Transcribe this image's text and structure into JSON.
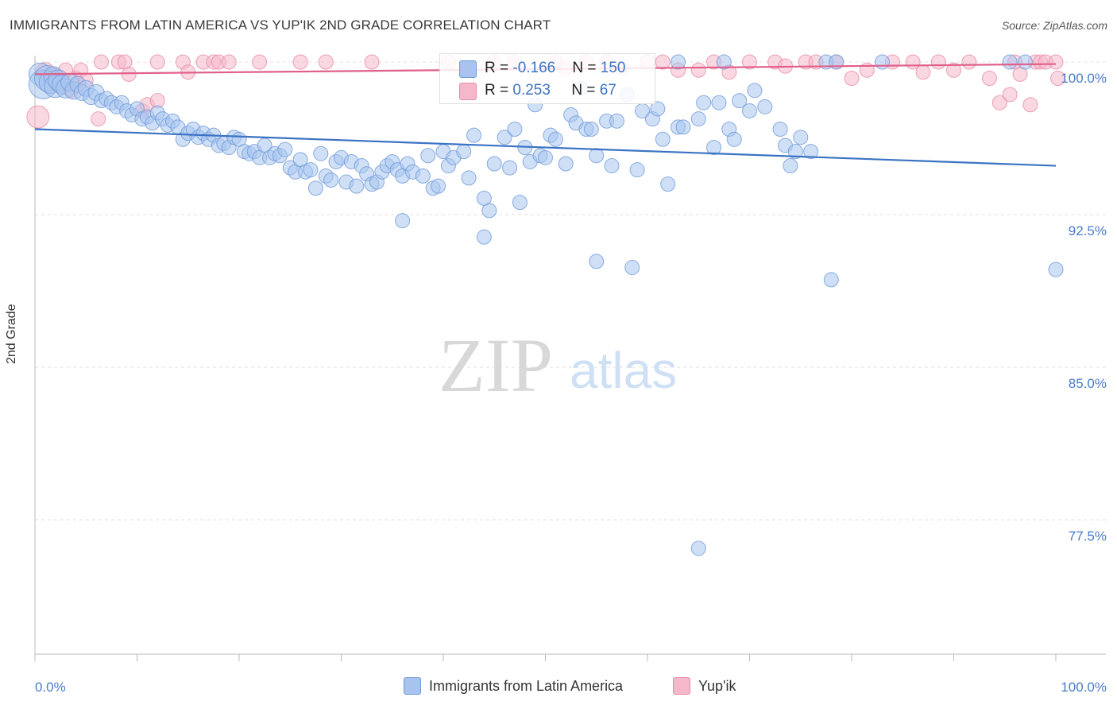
{
  "title": "IMMIGRANTS FROM LATIN AMERICA VS YUP'IK 2ND GRADE CORRELATION CHART",
  "source": "Source: ZipAtlas.com",
  "watermark": {
    "zip": "ZIP",
    "atlas": "atlas"
  },
  "colors": {
    "blue": "#3b73c4",
    "blue_fill": "#a8c4ee",
    "pink": "#e0608a",
    "pink_fill": "#f5b8cb",
    "grid": "#e2e2e2",
    "tick_text": "#4a7cc9"
  },
  "legend_top": {
    "rows": [
      {
        "r_label": "R = ",
        "r_value": "-0.166",
        "n_label": "N = ",
        "n_value": "150"
      },
      {
        "r_label": "R = ",
        "r_value": "0.253",
        "n_label": "N = ",
        "n_value": "67"
      }
    ]
  },
  "legend_bottom": [
    {
      "label": "Immigrants from Latin America"
    },
    {
      "label": "Yup'ik"
    }
  ],
  "chart_data": {
    "type": "scatter",
    "title": "IMMIGRANTS FROM LATIN AMERICA VS YUP'IK 2ND GRADE CORRELATION CHART",
    "xlabel": "",
    "ylabel": "2nd Grade",
    "xlim": [
      0,
      100
    ],
    "ylim": [
      70,
      101.5
    ],
    "x_tick_labels": [
      "0.0%",
      "100.0%"
    ],
    "y_ticks": [
      {
        "value": 100,
        "label": "100.0%"
      },
      {
        "value": 92.5,
        "label": "92.5%"
      },
      {
        "value": 85,
        "label": "85.0%"
      },
      {
        "value": 77.5,
        "label": "77.5%"
      }
    ],
    "series": [
      {
        "name": "Immigrants from Latin America",
        "trend": {
          "x": [
            0,
            100
          ],
          "y": [
            96.7,
            94.9
          ]
        },
        "points": [
          [
            0.5,
            99.4,
            14
          ],
          [
            0.8,
            98.9,
            18
          ],
          [
            1.2,
            99.2,
            16
          ],
          [
            1.5,
            99.0,
            14
          ],
          [
            1.8,
            99.3,
            12
          ],
          [
            2.0,
            98.8,
            14
          ],
          [
            2.3,
            99.1,
            13
          ],
          [
            2.6,
            98.9,
            12
          ],
          [
            3.0,
            98.7,
            12
          ],
          [
            3.4,
            99.0,
            11
          ],
          [
            3.8,
            98.6,
            11
          ],
          [
            4.2,
            98.9,
            10
          ],
          [
            4.6,
            98.5,
            10
          ],
          [
            5.0,
            98.7,
            10
          ],
          [
            5.5,
            98.3,
            10
          ],
          [
            6.0,
            98.5,
            10
          ],
          [
            6.5,
            98.1,
            9
          ],
          [
            7.0,
            98.2,
            9
          ],
          [
            7.5,
            98.0,
            9
          ],
          [
            8.0,
            97.8,
            9
          ],
          [
            8.5,
            98.0,
            9
          ],
          [
            9.0,
            97.6,
            9
          ],
          [
            9.5,
            97.4,
            9
          ],
          [
            10.0,
            97.7,
            9
          ],
          [
            10.5,
            97.2,
            9
          ],
          [
            11.0,
            97.3,
            9
          ],
          [
            11.5,
            97.0,
            9
          ],
          [
            12.0,
            97.5,
            9
          ],
          [
            12.5,
            97.2,
            9
          ],
          [
            13.0,
            96.9,
            9
          ],
          [
            13.5,
            97.1,
            9
          ],
          [
            14.0,
            96.8,
            9
          ],
          [
            14.5,
            96.2,
            9
          ],
          [
            15.0,
            96.5,
            9
          ],
          [
            15.5,
            96.7,
            9
          ],
          [
            16.0,
            96.3,
            9
          ],
          [
            16.5,
            96.5,
            9
          ],
          [
            17.0,
            96.2,
            9
          ],
          [
            17.5,
            96.4,
            9
          ],
          [
            18.0,
            95.9,
            9
          ],
          [
            18.5,
            96.0,
            9
          ],
          [
            19.0,
            95.8,
            9
          ],
          [
            19.5,
            96.3,
            9
          ],
          [
            20.0,
            96.2,
            9
          ],
          [
            20.5,
            95.6,
            9
          ],
          [
            21.0,
            95.5,
            9
          ],
          [
            21.5,
            95.6,
            9
          ],
          [
            22.0,
            95.3,
            9
          ],
          [
            22.5,
            95.9,
            9
          ],
          [
            23.0,
            95.3,
            9
          ],
          [
            23.5,
            95.5,
            9
          ],
          [
            24.0,
            95.4,
            9
          ],
          [
            24.5,
            95.7,
            9
          ],
          [
            25.0,
            94.8,
            9
          ],
          [
            25.5,
            94.6,
            9
          ],
          [
            26.0,
            95.2,
            9
          ],
          [
            26.5,
            94.6,
            9
          ],
          [
            27.0,
            94.7,
            9
          ],
          [
            27.5,
            93.8,
            9
          ],
          [
            28.0,
            95.5,
            9
          ],
          [
            28.5,
            94.4,
            9
          ],
          [
            29.0,
            94.2,
            9
          ],
          [
            29.5,
            95.1,
            9
          ],
          [
            30.0,
            95.3,
            9
          ],
          [
            30.5,
            94.1,
            9
          ],
          [
            31.0,
            95.1,
            9
          ],
          [
            31.5,
            93.9,
            9
          ],
          [
            32.0,
            94.9,
            9
          ],
          [
            32.5,
            94.5,
            9
          ],
          [
            33.0,
            94.0,
            9
          ],
          [
            33.5,
            94.1,
            9
          ],
          [
            34.0,
            94.6,
            9
          ],
          [
            34.5,
            94.9,
            9
          ],
          [
            35.0,
            95.1,
            9
          ],
          [
            35.5,
            94.7,
            9
          ],
          [
            36.0,
            94.4,
            9
          ],
          [
            36.5,
            95.0,
            9
          ],
          [
            37.0,
            94.6,
            9
          ],
          [
            38.0,
            94.4,
            9
          ],
          [
            38.5,
            95.4,
            9
          ],
          [
            39.0,
            93.8,
            9
          ],
          [
            39.5,
            93.9,
            9
          ],
          [
            40.0,
            95.6,
            9
          ],
          [
            40.5,
            94.9,
            9
          ],
          [
            41.0,
            95.3,
            9
          ],
          [
            42.0,
            95.6,
            9
          ],
          [
            42.5,
            94.3,
            9
          ],
          [
            43.0,
            96.4,
            9
          ],
          [
            44.0,
            93.3,
            9
          ],
          [
            44.5,
            92.7,
            9
          ],
          [
            45.0,
            95.0,
            9
          ],
          [
            46.0,
            96.3,
            9
          ],
          [
            46.5,
            94.8,
            9
          ],
          [
            47.0,
            96.7,
            9
          ],
          [
            47.5,
            93.1,
            9
          ],
          [
            48.0,
            95.8,
            9
          ],
          [
            48.5,
            95.1,
            9
          ],
          [
            49.0,
            97.9,
            9
          ],
          [
            49.5,
            95.4,
            9
          ],
          [
            50.0,
            95.3,
            9
          ],
          [
            50.5,
            96.4,
            9
          ],
          [
            51.0,
            96.2,
            9
          ],
          [
            52.0,
            95.0,
            9
          ],
          [
            52.5,
            97.4,
            9
          ],
          [
            53.0,
            97.0,
            9
          ],
          [
            53.5,
            98.7,
            9
          ],
          [
            54.0,
            96.7,
            9
          ],
          [
            54.5,
            96.7,
            9
          ],
          [
            55.0,
            95.4,
            9
          ],
          [
            56.0,
            97.1,
            9
          ],
          [
            56.5,
            94.9,
            9
          ],
          [
            57.0,
            97.1,
            9
          ],
          [
            58.0,
            98.4,
            9
          ],
          [
            59.0,
            94.7,
            9
          ],
          [
            59.5,
            97.6,
            9
          ],
          [
            60.5,
            97.2,
            9
          ],
          [
            61.0,
            97.7,
            9
          ],
          [
            61.5,
            96.2,
            9
          ],
          [
            62.0,
            94.0,
            9
          ],
          [
            63.0,
            96.8,
            9
          ],
          [
            63.5,
            96.8,
            9
          ],
          [
            65.0,
            97.2,
            9
          ],
          [
            65.5,
            98.0,
            9
          ],
          [
            66.5,
            95.8,
            9
          ],
          [
            67.0,
            98.0,
            9
          ],
          [
            68.0,
            96.7,
            9
          ],
          [
            68.5,
            96.2,
            9
          ],
          [
            69.0,
            98.1,
            9
          ],
          [
            70.0,
            97.6,
            9
          ],
          [
            70.5,
            98.6,
            9
          ],
          [
            71.5,
            97.8,
            9
          ],
          [
            73.0,
            96.7,
            9
          ],
          [
            73.5,
            95.9,
            9
          ],
          [
            74.0,
            94.9,
            9
          ],
          [
            74.5,
            95.6,
            9
          ],
          [
            75.0,
            96.3,
            9
          ],
          [
            76.0,
            95.6,
            9
          ],
          [
            36.0,
            92.2,
            9
          ],
          [
            44.0,
            91.4,
            9
          ],
          [
            55.0,
            90.2,
            9
          ],
          [
            58.5,
            89.9,
            9
          ],
          [
            78.0,
            89.3,
            9
          ],
          [
            100.0,
            89.8,
            9
          ],
          [
            65.0,
            76.1,
            9
          ],
          [
            63.0,
            100.0,
            9
          ],
          [
            67.5,
            100.0,
            9
          ],
          [
            77.5,
            100.0,
            9
          ],
          [
            78.5,
            100.0,
            9
          ],
          [
            83.0,
            100.0,
            9
          ],
          [
            95.5,
            100.0,
            9
          ],
          [
            97.0,
            100.0,
            9
          ]
        ]
      },
      {
        "name": "Yup'ik",
        "trend": {
          "x": [
            0,
            100
          ],
          "y": [
            99.4,
            99.9
          ]
        },
        "points": [
          [
            0.3,
            97.3,
            14
          ],
          [
            1.0,
            99.5,
            12
          ],
          [
            2.0,
            99.3,
            10
          ],
          [
            2.5,
            98.9,
            10
          ],
          [
            3.5,
            98.6,
            9
          ],
          [
            4.0,
            99.2,
            9
          ],
          [
            4.5,
            99.6,
            9
          ],
          [
            5.0,
            99.1,
            9
          ],
          [
            6.5,
            100.0,
            9
          ],
          [
            6.2,
            97.2,
            9
          ],
          [
            8.2,
            100.0,
            9
          ],
          [
            8.8,
            100.0,
            9
          ],
          [
            9.2,
            99.4,
            9
          ],
          [
            10.5,
            97.6,
            9
          ],
          [
            11.0,
            97.9,
            9
          ],
          [
            12.0,
            98.1,
            9
          ],
          [
            12.0,
            100.0,
            9
          ],
          [
            14.5,
            100.0,
            9
          ],
          [
            15.0,
            99.5,
            9
          ],
          [
            16.5,
            100.0,
            9
          ],
          [
            17.5,
            100.0,
            9
          ],
          [
            18.0,
            100.0,
            9
          ],
          [
            19.0,
            100.0,
            9
          ],
          [
            26.0,
            100.0,
            9
          ],
          [
            28.5,
            100.0,
            9
          ],
          [
            40.5,
            100.0,
            9
          ],
          [
            45.0,
            100.0,
            9
          ],
          [
            51.0,
            100.0,
            9
          ],
          [
            54.0,
            100.0,
            9
          ],
          [
            56.0,
            100.0,
            9
          ],
          [
            60.0,
            100.0,
            9
          ],
          [
            61.5,
            100.0,
            9
          ],
          [
            63.0,
            99.6,
            9
          ],
          [
            65.0,
            99.6,
            9
          ],
          [
            66.5,
            100.0,
            9
          ],
          [
            70.0,
            100.0,
            9
          ],
          [
            72.5,
            100.0,
            9
          ],
          [
            75.5,
            100.0,
            9
          ],
          [
            76.5,
            100.0,
            9
          ],
          [
            78.5,
            100.0,
            9
          ],
          [
            80.0,
            99.2,
            9
          ],
          [
            81.5,
            99.6,
            9
          ],
          [
            86.0,
            100.0,
            9
          ],
          [
            88.5,
            100.0,
            9
          ],
          [
            91.5,
            100.0,
            9
          ],
          [
            93.5,
            99.2,
            9
          ],
          [
            94.5,
            98.0,
            9
          ],
          [
            95.5,
            98.4,
            9
          ],
          [
            96.0,
            100.0,
            9
          ],
          [
            96.5,
            99.4,
            9
          ],
          [
            97.5,
            97.9,
            9
          ],
          [
            98.0,
            100.0,
            9
          ],
          [
            98.5,
            100.0,
            9
          ],
          [
            99.0,
            100.0,
            9
          ],
          [
            100.0,
            100.0,
            9
          ],
          [
            100.2,
            99.2,
            9
          ],
          [
            3.0,
            99.6,
            9
          ],
          [
            52.0,
            99.7,
            9
          ],
          [
            57.5,
            99.7,
            9
          ],
          [
            68.0,
            99.5,
            9
          ],
          [
            73.5,
            99.8,
            9
          ],
          [
            84.0,
            100.0,
            9
          ],
          [
            90.0,
            99.6,
            9
          ],
          [
            22.0,
            100.0,
            9
          ],
          [
            33.0,
            100.0,
            9
          ],
          [
            47.0,
            100.0,
            9
          ],
          [
            87.0,
            99.5,
            9
          ]
        ]
      }
    ]
  }
}
